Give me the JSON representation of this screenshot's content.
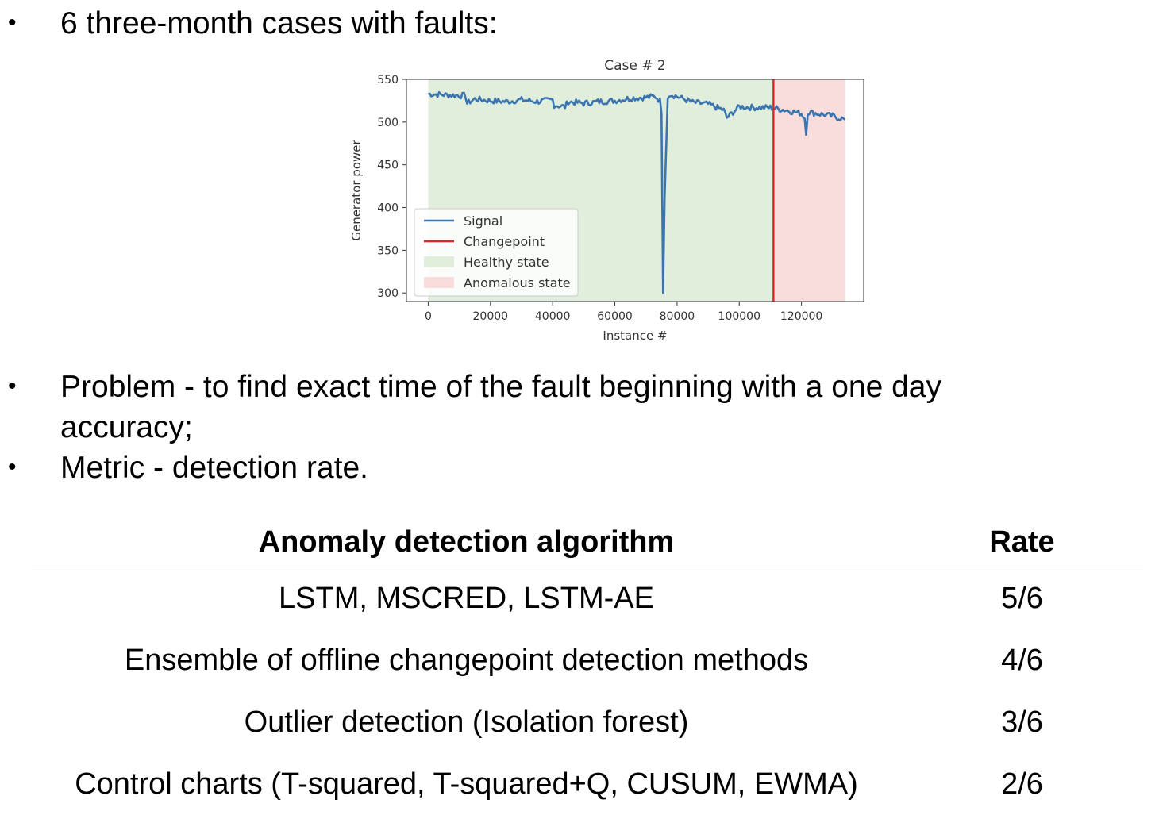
{
  "bullets": {
    "b1": "6 three-month cases with faults:",
    "b2_line1": "Problem - to find exact time of the fault beginning with a one day",
    "b2_line2": "accuracy;",
    "b3": "Metric - detection rate."
  },
  "bullet_symbol": "•",
  "chart_data": {
    "type": "line",
    "title": "Case # 2",
    "xlabel": "Instance #",
    "ylabel": "Generator power",
    "xlim": [
      -7000,
      140000
    ],
    "ylim": [
      290,
      550
    ],
    "xticks": [
      0,
      20000,
      40000,
      60000,
      80000,
      100000,
      120000
    ],
    "yticks": [
      300,
      350,
      400,
      450,
      500,
      550
    ],
    "grid": false,
    "legend_position": "lower-left",
    "changepoint": 111000,
    "healthy_range": [
      0,
      111000
    ],
    "anomalous_range": [
      111000,
      134000
    ],
    "series": [
      {
        "name": "Signal",
        "color": "#3b75af",
        "x": [
          0,
          5000,
          10000,
          12000,
          12500,
          15000,
          20000,
          25000,
          30000,
          35000,
          40000,
          40500,
          44000,
          45000,
          50000,
          55000,
          60000,
          65000,
          70000,
          73000,
          74500,
          75000,
          75500,
          76000,
          76500,
          77000,
          77500,
          80000,
          85000,
          90000,
          95000,
          96000,
          100000,
          105000,
          110000,
          115000,
          120000,
          121000,
          121500,
          122000,
          125000,
          130000,
          134000
        ],
        "y": [
          533,
          532,
          531,
          531,
          522,
          527,
          525,
          524,
          526,
          524,
          526,
          520,
          518,
          524,
          522,
          524,
          525,
          528,
          529,
          530,
          525,
          510,
          300,
          410,
          470,
          530,
          533,
          530,
          523,
          521,
          514,
          505,
          518,
          517,
          517,
          514,
          510,
          505,
          485,
          512,
          510,
          507,
          503
        ]
      }
    ],
    "legend": [
      {
        "label": "Signal",
        "color": "#3b75af",
        "kind": "line"
      },
      {
        "label": "Changepoint",
        "color": "#d62728",
        "kind": "line"
      },
      {
        "label": "Healthy state",
        "color": "#e1eedc",
        "kind": "patch"
      },
      {
        "label": "Anomalous state",
        "color": "#f9dcdc",
        "kind": "patch"
      }
    ]
  },
  "table": {
    "headers": [
      "Anomaly detection algorithm",
      "Rate"
    ],
    "rows": [
      {
        "algorithm": "LSTM, MSCRED, LSTM-AE",
        "rate": "5/6"
      },
      {
        "algorithm": "Ensemble of offline changepoint detection methods",
        "rate": "4/6"
      },
      {
        "algorithm": "Outlier detection (Isolation forest)",
        "rate": "3/6"
      },
      {
        "algorithm": "Control charts (T-squared, T-squared+Q, CUSUM, EWMA)",
        "rate": "2/6"
      }
    ]
  }
}
